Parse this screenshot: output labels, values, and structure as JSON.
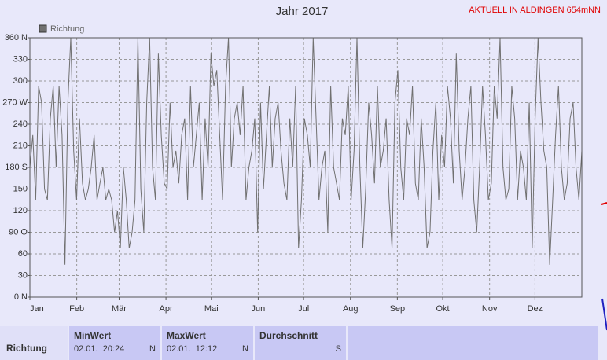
{
  "header": {
    "notice": "AKTUELL IN ALDINGEN 654mNN"
  },
  "chart_data": {
    "type": "line",
    "title": "Jahr 2017",
    "legend": "top-left",
    "series": [
      {
        "name": "Richtung",
        "color": "#707070",
        "values": [
          180,
          225,
          135,
          293,
          270,
          150,
          135,
          248,
          293,
          180,
          293,
          225,
          45,
          270,
          360,
          203,
          135,
          248,
          158,
          135,
          150,
          180,
          225,
          135,
          158,
          180,
          135,
          150,
          135,
          90,
          120,
          68,
          180,
          135,
          68,
          90,
          135,
          360,
          150,
          90,
          270,
          360,
          180,
          135,
          338,
          225,
          158,
          150,
          270,
          180,
          203,
          158,
          225,
          248,
          135,
          293,
          180,
          225,
          270,
          135,
          248,
          180,
          338,
          293,
          315,
          225,
          135,
          293,
          360,
          180,
          248,
          270,
          225,
          293,
          135,
          180,
          203,
          248,
          90,
          270,
          150,
          225,
          293,
          180,
          248,
          270,
          203,
          158,
          135,
          248,
          180,
          293,
          68,
          135,
          248,
          225,
          180,
          360,
          248,
          135,
          180,
          203,
          90,
          293,
          180,
          158,
          135,
          248,
          225,
          293,
          135,
          203,
          360,
          180,
          68,
          150,
          270,
          225,
          158,
          293,
          180,
          203,
          248,
          135,
          68,
          270,
          315,
          180,
          135,
          248,
          225,
          293,
          158,
          135,
          248,
          180,
          68,
          90,
          203,
          270,
          135,
          225,
          180,
          293,
          248,
          158,
          338,
          203,
          135,
          180,
          248,
          293,
          135,
          90,
          180,
          293,
          225,
          135,
          158,
          293,
          248,
          360,
          180,
          135,
          150,
          293,
          248,
          135,
          203,
          180,
          135,
          270,
          68,
          248,
          360,
          270,
          203,
          180,
          45,
          135,
          225,
          293,
          180,
          135,
          158,
          248,
          270,
          180,
          135,
          203
        ]
      }
    ],
    "xlim": [
      0,
      365
    ],
    "xticks": [
      {
        "value": 0,
        "label": "Jan"
      },
      {
        "value": 31,
        "label": "Feb"
      },
      {
        "value": 59,
        "label": "Mär"
      },
      {
        "value": 90,
        "label": "Apr"
      },
      {
        "value": 120,
        "label": "Mai"
      },
      {
        "value": 151,
        "label": "Jun"
      },
      {
        "value": 181,
        "label": "Jul"
      },
      {
        "value": 212,
        "label": "Aug"
      },
      {
        "value": 243,
        "label": "Sep"
      },
      {
        "value": 273,
        "label": "Okt"
      },
      {
        "value": 304,
        "label": "Nov"
      },
      {
        "value": 334,
        "label": "Dez"
      }
    ],
    "ylim": [
      0,
      360
    ],
    "yticks": [
      {
        "value": 0,
        "label": "0 N"
      },
      30,
      60,
      {
        "value": 90,
        "label": "90 O"
      },
      120,
      150,
      {
        "value": 180,
        "label": "180 S"
      },
      210,
      240,
      {
        "value": 270,
        "label": "270 W"
      },
      300,
      330,
      {
        "value": 360,
        "label": "360 N"
      }
    ],
    "grid": true
  },
  "table": {
    "row_label": "Richtung",
    "columns": [
      {
        "title": "MinWert",
        "date": "02.01.  20:24",
        "dir": "N"
      },
      {
        "title": "MaxWert",
        "date": "02.01.  12:12",
        "dir": "N"
      },
      {
        "title": "Durchschnitt",
        "dir": "S"
      }
    ]
  }
}
